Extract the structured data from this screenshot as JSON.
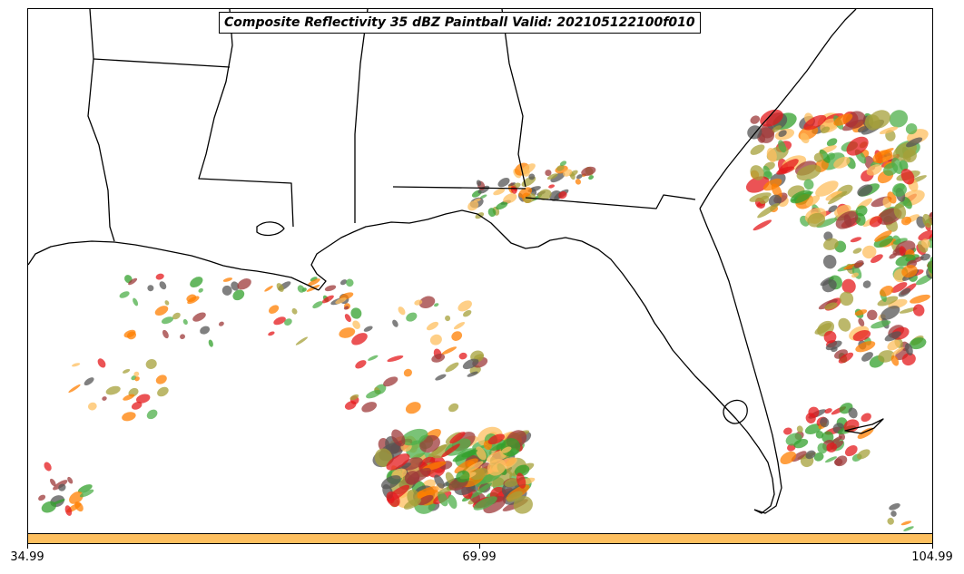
{
  "title": "Composite Reflectivity 35 dBZ Paintball Valid: 202105122100f010",
  "colorbar": {
    "color": "#fdbf5f",
    "ticks": [
      "34.99",
      "69.99",
      "104.99"
    ]
  },
  "map": {
    "region": "US Gulf Coast and Southeast",
    "states": [
      "Texas",
      "Louisiana",
      "Mississippi",
      "Alabama",
      "Georgia",
      "Florida"
    ],
    "member_colors": [
      "#e41a1c",
      "#ff7f00",
      "#fdbf5f",
      "#4daf4a",
      "#33a02c",
      "#9e3a3a",
      "#a6a03a",
      "#555555"
    ]
  }
}
